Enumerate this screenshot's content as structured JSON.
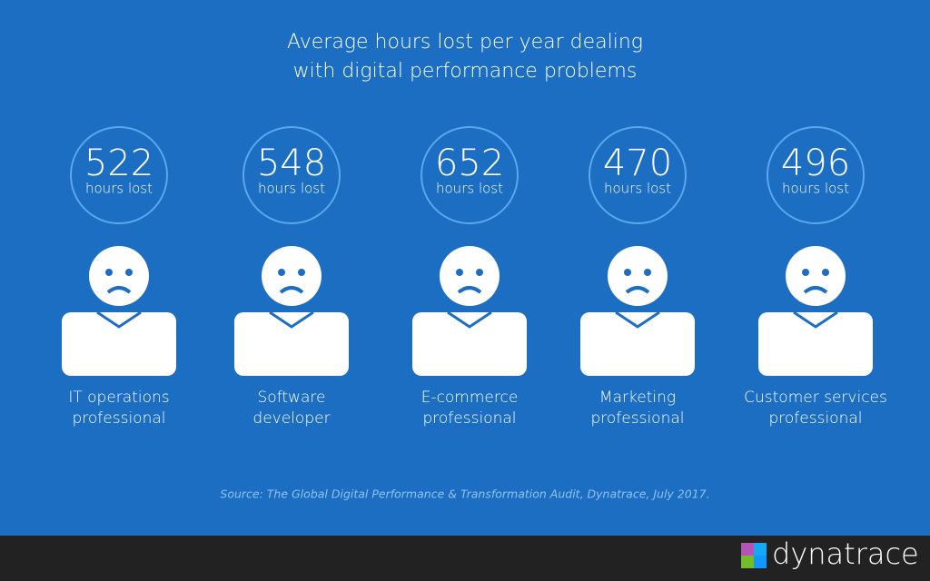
{
  "title": [
    "Average hours lost per year dealing",
    "with digital performance problems"
  ],
  "items": [
    {
      "value": "522",
      "unit": "hours lost",
      "role": [
        "IT operations",
        "professional"
      ]
    },
    {
      "value": "548",
      "unit": "hours lost",
      "role": [
        "Software",
        "developer"
      ]
    },
    {
      "value": "652",
      "unit": "hours lost",
      "role": [
        "E-commerce",
        "professional"
      ]
    },
    {
      "value": "470",
      "unit": "hours lost",
      "role": [
        "Marketing",
        "professional"
      ]
    },
    {
      "value": "496",
      "unit": "hours lost",
      "role": [
        "Customer services",
        "professional"
      ]
    }
  ],
  "source": "Source: The Global Digital Performance & Transformation Audit, Dynatrace, July 2017.",
  "brand": "dynatrace"
}
